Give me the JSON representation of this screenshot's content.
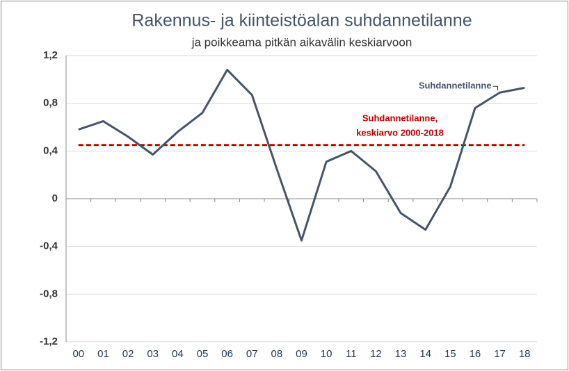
{
  "chart_data": {
    "type": "line",
    "title": "Rakennus- ja kiinteistöalan suhdannetilanne",
    "subtitle": "ja poikkeama pitkän aikavälin keskiarvoon",
    "categories": [
      "00",
      "01",
      "02",
      "03",
      "04",
      "05",
      "06",
      "07",
      "08",
      "09",
      "10",
      "11",
      "12",
      "13",
      "14",
      "15",
      "16",
      "17",
      "18"
    ],
    "series": [
      {
        "name": "Suhdannetilanne",
        "color": "#44546a",
        "values": [
          0.58,
          0.65,
          0.52,
          0.37,
          0.56,
          0.72,
          1.08,
          0.87,
          0.25,
          -0.35,
          0.31,
          0.4,
          0.23,
          -0.12,
          -0.26,
          0.1,
          0.76,
          0.89,
          0.93
        ]
      }
    ],
    "reference_line": {
      "value": 0.45,
      "color": "#c00000",
      "label": [
        "Suhdannetilanne,",
        "keskiarvo 2000-2018"
      ]
    },
    "ylim": [
      -1.2,
      1.2
    ],
    "yticks": [
      {
        "value": -1.2,
        "label": "-1,2"
      },
      {
        "value": -0.8,
        "label": "-0,8"
      },
      {
        "value": -0.4,
        "label": "-0,4"
      },
      0,
      {
        "value": 0.4,
        "label": "0,4"
      },
      {
        "value": 0.8,
        "label": "0,8"
      },
      {
        "value": 1.2,
        "label": "1,2"
      }
    ],
    "grid": true
  }
}
